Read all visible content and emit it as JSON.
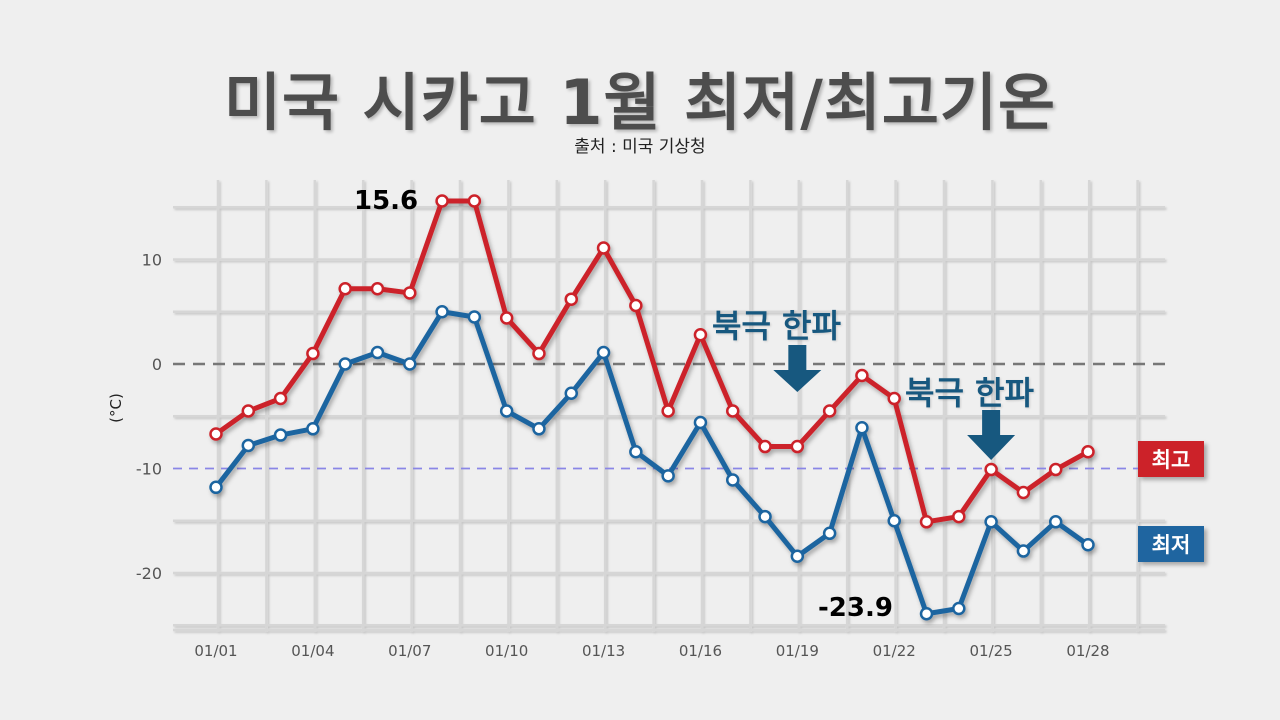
{
  "header": {
    "title": "미국 시카고 1월 최저/최고기온",
    "subtitle": "출처 : 미국 기상청"
  },
  "legend": {
    "high": {
      "label": "최고",
      "color": "#cc2229"
    },
    "low": {
      "label": "최저",
      "color": "#1f65a0"
    }
  },
  "annotations": {
    "cold_wave_1": {
      "text": "북극 한파",
      "date": "01/19"
    },
    "cold_wave_2": {
      "text": "북극 한파",
      "date": "01/25"
    },
    "max_label": "15.6",
    "min_label": "-23.9"
  },
  "colors": {
    "arrow": "#17587f",
    "zero_line": "#777777",
    "minus10_line": "#8a86e6",
    "grid": "#d6d6d6",
    "background": "#efefef"
  },
  "chart_data": {
    "type": "line",
    "title": "미국 시카고 1월 최저/최고기온",
    "subtitle": "출처 : 미국 기상청",
    "xlabel": "",
    "ylabel": "(°C)",
    "ylim": [
      -26,
      17
    ],
    "yticks": [
      10,
      0,
      -10,
      -20
    ],
    "x": [
      "01/01",
      "01/02",
      "01/03",
      "01/04",
      "01/05",
      "01/06",
      "01/07",
      "01/08",
      "01/09",
      "01/10",
      "01/11",
      "01/12",
      "01/13",
      "01/14",
      "01/15",
      "01/16",
      "01/17",
      "01/18",
      "01/19",
      "01/20",
      "01/21",
      "01/22",
      "01/23",
      "01/24",
      "01/25",
      "01/26",
      "01/27",
      "01/28"
    ],
    "xtick_labels": [
      "01/01",
      "01/04",
      "01/07",
      "01/10",
      "01/13",
      "01/16",
      "01/19",
      "01/22",
      "01/25",
      "01/28"
    ],
    "series": [
      {
        "name": "최고",
        "color": "#cc2229",
        "values": [
          -6.7,
          -4.5,
          -3.3,
          1.0,
          7.2,
          7.2,
          6.8,
          15.6,
          15.6,
          4.4,
          1.0,
          6.2,
          11.1,
          5.6,
          -4.5,
          2.8,
          -4.5,
          -7.9,
          -7.9,
          -4.5,
          -1.1,
          -3.3,
          -15.1,
          -14.6,
          -10.1,
          -12.3,
          -10.1,
          -8.4
        ]
      },
      {
        "name": "최저",
        "color": "#1f65a0",
        "values": [
          -11.8,
          -7.8,
          -6.8,
          -6.2,
          0.0,
          1.1,
          0.0,
          5.0,
          4.5,
          -4.5,
          -6.2,
          -2.8,
          1.1,
          -8.4,
          -10.7,
          -5.6,
          -11.1,
          -14.6,
          -18.4,
          -16.2,
          -6.1,
          -15.0,
          -23.9,
          -23.4,
          -15.1,
          -17.9,
          -15.1,
          -17.3
        ]
      }
    ],
    "reference_lines": [
      {
        "y": 0,
        "style": "dashed",
        "color": "#777777"
      },
      {
        "y": -10,
        "style": "dashed",
        "color": "#8a86e6"
      }
    ],
    "annotations": [
      {
        "text": "15.6",
        "x": "01/08",
        "series": "최고"
      },
      {
        "text": "-23.9",
        "x": "01/23",
        "series": "최저"
      },
      {
        "text": "북극 한파",
        "x": "01/19",
        "arrow": "down"
      },
      {
        "text": "북극 한파",
        "x": "01/25",
        "arrow": "down"
      }
    ],
    "grid": true,
    "legend_position": "right"
  }
}
